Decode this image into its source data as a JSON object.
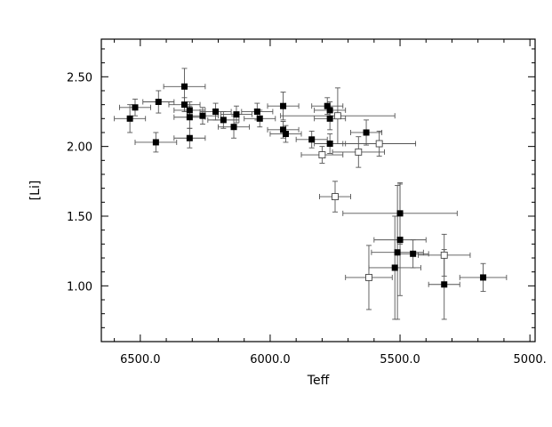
{
  "chart_data": {
    "type": "scatter",
    "xlabel": "Teff",
    "ylabel": "[Li]",
    "xlim": [
      6650,
      4980
    ],
    "ylim": [
      0.6,
      2.77
    ],
    "x_reversed": true,
    "x_ticks": [
      {
        "value": 6500,
        "label": "6500.0"
      },
      {
        "value": 6000,
        "label": "6000.0"
      },
      {
        "value": 5500,
        "label": "5500.0"
      },
      {
        "value": 5000,
        "label": "5000."
      }
    ],
    "y_ticks": [
      {
        "value": 1.0,
        "label": "1.00"
      },
      {
        "value": 1.5,
        "label": "1.50"
      },
      {
        "value": 2.0,
        "label": "2.00"
      },
      {
        "value": 2.5,
        "label": "2.50"
      }
    ],
    "grid": false,
    "legend": "none",
    "series": [
      {
        "marker": "filled-square",
        "color": "#000000",
        "points": [
          {
            "x": 6540,
            "y": 2.2,
            "xerr": 60,
            "yerr": 0.1
          },
          {
            "x": 6520,
            "y": 2.28,
            "xerr": 60,
            "yerr": 0.06
          },
          {
            "x": 6430,
            "y": 2.32,
            "xerr": 60,
            "yerr": 0.08
          },
          {
            "x": 6440,
            "y": 2.03,
            "xerr": 80,
            "yerr": 0.07
          },
          {
            "x": 6330,
            "y": 2.43,
            "xerr": 80,
            "yerr": 0.13
          },
          {
            "x": 6330,
            "y": 2.3,
            "xerr": 60,
            "yerr": 0.05
          },
          {
            "x": 6310,
            "y": 2.26,
            "xerr": 60,
            "yerr": 0.06
          },
          {
            "x": 6310,
            "y": 2.21,
            "xerr": 60,
            "yerr": 0.08
          },
          {
            "x": 6310,
            "y": 2.06,
            "xerr": 60,
            "yerr": 0.07
          },
          {
            "x": 6260,
            "y": 2.22,
            "xerr": 60,
            "yerr": 0.06
          },
          {
            "x": 6210,
            "y": 2.25,
            "xerr": 60,
            "yerr": 0.06
          },
          {
            "x": 6180,
            "y": 2.19,
            "xerr": 60,
            "yerr": 0.06
          },
          {
            "x": 6140,
            "y": 2.14,
            "xerr": 60,
            "yerr": 0.08
          },
          {
            "x": 6130,
            "y": 2.23,
            "xerr": 60,
            "yerr": 0.06
          },
          {
            "x": 6050,
            "y": 2.25,
            "xerr": 60,
            "yerr": 0.06
          },
          {
            "x": 6040,
            "y": 2.2,
            "xerr": 60,
            "yerr": 0.06
          },
          {
            "x": 5950,
            "y": 2.29,
            "xerr": 60,
            "yerr": 0.1
          },
          {
            "x": 5950,
            "y": 2.12,
            "xerr": 60,
            "yerr": 0.06
          },
          {
            "x": 5940,
            "y": 2.09,
            "xerr": 60,
            "yerr": 0.06
          },
          {
            "x": 5840,
            "y": 2.05,
            "xerr": 60,
            "yerr": 0.06
          },
          {
            "x": 5780,
            "y": 2.29,
            "xerr": 60,
            "yerr": 0.06
          },
          {
            "x": 5770,
            "y": 2.26,
            "xerr": 60,
            "yerr": 0.06
          },
          {
            "x": 5770,
            "y": 2.2,
            "xerr": 60,
            "yerr": 0.08
          },
          {
            "x": 5770,
            "y": 2.02,
            "xerr": 60,
            "yerr": 0.07
          },
          {
            "x": 5630,
            "y": 2.1,
            "xerr": 60,
            "yerr": 0.09
          },
          {
            "x": 5500,
            "y": 1.52,
            "xerr": 220,
            "yerr": 0.22
          },
          {
            "x": 5500,
            "y": 1.33,
            "xerr": 100,
            "yerr": 0.4
          },
          {
            "x": 5510,
            "y": 1.24,
            "xerr": 100,
            "yerr": 0.48
          },
          {
            "x": 5520,
            "y": 1.13,
            "xerr": 100,
            "yerr": 0.37
          },
          {
            "x": 5450,
            "y": 1.23,
            "xerr": 60,
            "yerr": 0.1
          },
          {
            "x": 5330,
            "y": 1.01,
            "xerr": 60,
            "yerr": 0.25
          },
          {
            "x": 5180,
            "y": 1.06,
            "xerr": 90,
            "yerr": 0.1
          }
        ]
      },
      {
        "marker": "open-square",
        "color": "#000000",
        "points": [
          {
            "x": 5740,
            "y": 2.22,
            "xerr": 220,
            "yerr": 0.2
          },
          {
            "x": 5800,
            "y": 1.94,
            "xerr": 80,
            "yerr": 0.06
          },
          {
            "x": 5660,
            "y": 1.96,
            "xerr": 100,
            "yerr": 0.11
          },
          {
            "x": 5580,
            "y": 2.02,
            "xerr": 140,
            "yerr": 0.09
          },
          {
            "x": 5750,
            "y": 1.64,
            "xerr": 60,
            "yerr": 0.11
          },
          {
            "x": 5620,
            "y": 1.06,
            "xerr": 90,
            "yerr": 0.23
          },
          {
            "x": 5330,
            "y": 1.22,
            "xerr": 100,
            "yerr": 0.15
          }
        ]
      }
    ]
  }
}
